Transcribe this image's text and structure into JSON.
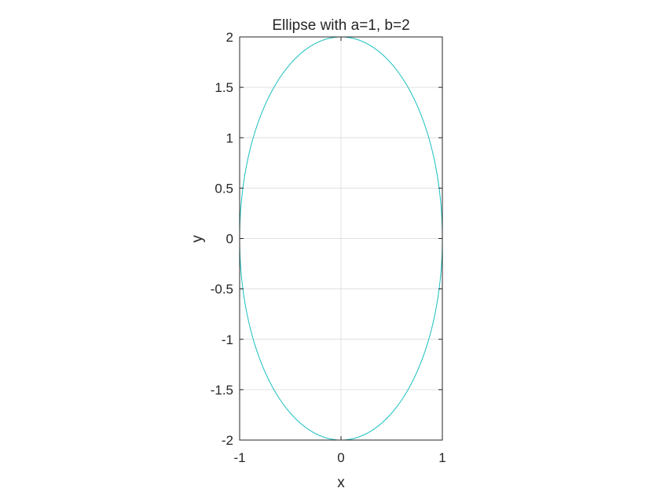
{
  "chart_data": {
    "type": "line",
    "title": "Ellipse with a=1, b=2",
    "xlabel": "x",
    "ylabel": "y",
    "xlim": [
      -1,
      1
    ],
    "ylim": [
      -2,
      2
    ],
    "xticks": [
      -1,
      0,
      1
    ],
    "xtick_labels": [
      "-1",
      "0",
      "1"
    ],
    "yticks": [
      -2,
      -1.5,
      -1,
      -0.5,
      0,
      0.5,
      1,
      1.5,
      2
    ],
    "ytick_labels": [
      "-2",
      "-1.5",
      "-1",
      "-0.5",
      "0",
      "0.5",
      "1",
      "1.5",
      "2"
    ],
    "grid": true,
    "box": true,
    "series": [
      {
        "parametric": "x = a*cos(t), y = b*sin(t), t in [0, 2π]",
        "a": 1,
        "b": 2,
        "color": "#1ABFBF",
        "x": [
          1,
          0.9239,
          0.7071,
          0.3827,
          0,
          -0.3827,
          -0.7071,
          -0.9239,
          -1,
          -0.9239,
          -0.7071,
          -0.3827,
          0,
          0.3827,
          0.7071,
          0.9239,
          1
        ],
        "y": [
          0,
          0.7654,
          1.4142,
          1.8478,
          2,
          1.8478,
          1.4142,
          0.7654,
          0,
          -0.7654,
          -1.4142,
          -1.8478,
          -2,
          -1.8478,
          -1.4142,
          -0.7654,
          0
        ]
      }
    ]
  },
  "colors": {
    "line": "#1ABFBF",
    "grid": "#E0E0E0",
    "axis": "#262626"
  }
}
